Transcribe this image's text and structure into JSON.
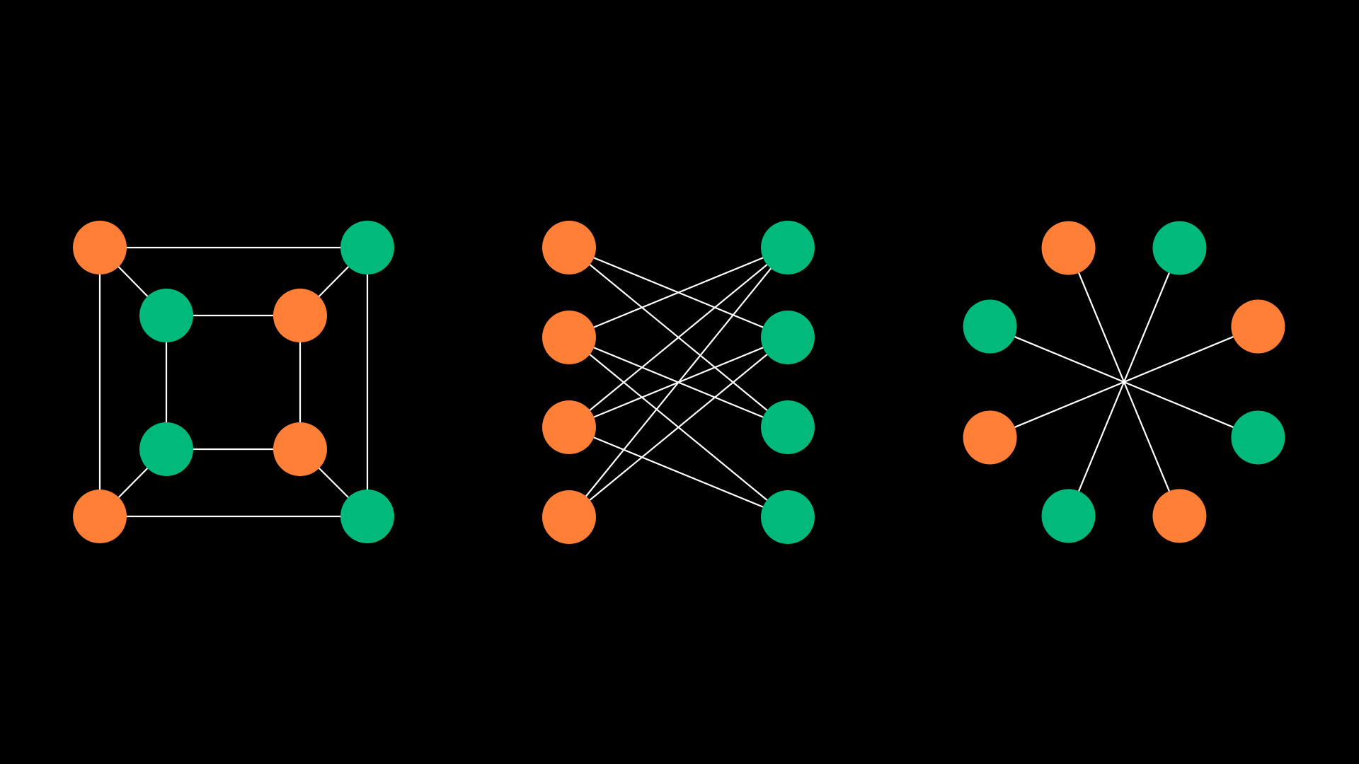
{
  "colors": {
    "background": "#000000",
    "edge": "#ffffff",
    "orange": "#fe7f35",
    "green": "#00b97a"
  },
  "graphs": [
    {
      "name": "cube-graph",
      "nodes": [
        {
          "id": "o1",
          "color": "orange"
        },
        {
          "id": "o2",
          "color": "green"
        },
        {
          "id": "o3",
          "color": "green"
        },
        {
          "id": "o4",
          "color": "orange"
        },
        {
          "id": "i1",
          "color": "green"
        },
        {
          "id": "i2",
          "color": "orange"
        },
        {
          "id": "i3",
          "color": "orange"
        },
        {
          "id": "i4",
          "color": "green"
        }
      ],
      "edges": [
        [
          "o1",
          "o2"
        ],
        [
          "o2",
          "o3"
        ],
        [
          "o3",
          "o4"
        ],
        [
          "o4",
          "o1"
        ],
        [
          "i1",
          "i2"
        ],
        [
          "i2",
          "i3"
        ],
        [
          "i3",
          "i4"
        ],
        [
          "i4",
          "i1"
        ],
        [
          "o1",
          "i1"
        ],
        [
          "o2",
          "i2"
        ],
        [
          "o3",
          "i3"
        ],
        [
          "o4",
          "i4"
        ]
      ]
    },
    {
      "name": "bipartite-graph",
      "nodes": [
        {
          "id": "l1",
          "color": "orange"
        },
        {
          "id": "l2",
          "color": "orange"
        },
        {
          "id": "l3",
          "color": "orange"
        },
        {
          "id": "l4",
          "color": "orange"
        },
        {
          "id": "r1",
          "color": "green"
        },
        {
          "id": "r2",
          "color": "green"
        },
        {
          "id": "r3",
          "color": "green"
        },
        {
          "id": "r4",
          "color": "green"
        }
      ],
      "edges": [
        [
          "l1",
          "r2"
        ],
        [
          "l1",
          "r3"
        ],
        [
          "l2",
          "r1"
        ],
        [
          "l2",
          "r3"
        ],
        [
          "l2",
          "r4"
        ],
        [
          "l3",
          "r1"
        ],
        [
          "l3",
          "r2"
        ],
        [
          "l3",
          "r4"
        ],
        [
          "l4",
          "r1"
        ],
        [
          "l4",
          "r2"
        ]
      ]
    },
    {
      "name": "star-graph",
      "nodes": [
        {
          "id": "s1",
          "color": "orange"
        },
        {
          "id": "s2",
          "color": "green"
        },
        {
          "id": "s3",
          "color": "orange"
        },
        {
          "id": "s4",
          "color": "green"
        },
        {
          "id": "s5",
          "color": "orange"
        },
        {
          "id": "s6",
          "color": "green"
        },
        {
          "id": "s7",
          "color": "orange"
        },
        {
          "id": "s8",
          "color": "green"
        }
      ],
      "edges": [
        [
          "s1",
          "s5"
        ],
        [
          "s2",
          "s6"
        ],
        [
          "s3",
          "s7"
        ],
        [
          "s4",
          "s8"
        ]
      ]
    }
  ]
}
